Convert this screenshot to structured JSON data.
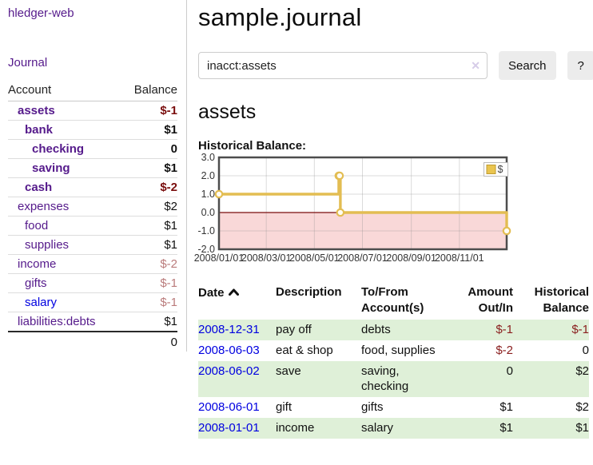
{
  "app": {
    "title": "hledger-web",
    "nav_journal": "Journal"
  },
  "sidebar": {
    "columns": {
      "account": "Account",
      "balance": "Balance"
    },
    "accounts": [
      {
        "name": "assets",
        "depth": 1,
        "bold": true,
        "balance": "$-1"
      },
      {
        "name": "bank",
        "depth": 2,
        "bold": true,
        "balance": "$1"
      },
      {
        "name": "checking",
        "depth": 3,
        "bold": true,
        "balance": "0"
      },
      {
        "name": "saving",
        "depth": 3,
        "bold": true,
        "balance": "$1"
      },
      {
        "name": "cash",
        "depth": 2,
        "bold": true,
        "balance": "$-2"
      },
      {
        "name": "expenses",
        "depth": 1,
        "bold": false,
        "balance": "$2"
      },
      {
        "name": "food",
        "depth": 2,
        "bold": false,
        "balance": "$1"
      },
      {
        "name": "supplies",
        "depth": 2,
        "bold": false,
        "balance": "$1"
      },
      {
        "name": "income",
        "depth": 1,
        "bold": false,
        "balance": "$-2"
      },
      {
        "name": "gifts",
        "depth": 2,
        "bold": false,
        "balance": "$-1"
      },
      {
        "name": "salary",
        "depth": 2,
        "bold": false,
        "balance": "$-1",
        "link_style": "blue"
      },
      {
        "name": "liabilities:debts",
        "depth": 1,
        "bold": false,
        "balance": "$1"
      }
    ],
    "total": "0"
  },
  "header": {
    "title": "sample.journal"
  },
  "search": {
    "value": "inacct:assets",
    "clear_icon": "✕",
    "button": "Search",
    "help_button": "?"
  },
  "account_page": {
    "heading": "assets",
    "chart_label": "Historical Balance:"
  },
  "chart_data": {
    "type": "line",
    "title": "Historical Balance:",
    "legend": [
      {
        "label": "$",
        "color": "#eac54f"
      }
    ],
    "legend_position": "top-right",
    "grid": true,
    "x_range": [
      "2008-01-01",
      "2008-12-31"
    ],
    "y_range": [
      -2.0,
      3.0
    ],
    "y_ticks": [
      "3.0",
      "2.0",
      "1.0",
      "0.0",
      "-1.0",
      "-2.0"
    ],
    "x_ticks": [
      {
        "label": "2008/01/01",
        "date": "2008-01-01"
      },
      {
        "label": "2008/03/01",
        "date": "2008-03-01"
      },
      {
        "label": "2008/05/01",
        "date": "2008-05-01"
      },
      {
        "label": "2008/07/01",
        "date": "2008-07-01"
      },
      {
        "label": "2008/09/01",
        "date": "2008-09-01"
      },
      {
        "label": "2008/11/01",
        "date": "2008-11-01"
      }
    ],
    "series": [
      {
        "name": "$",
        "style": "step-after",
        "color": "#e3bd52",
        "points": [
          {
            "x": "2008-01-01",
            "y": 1
          },
          {
            "x": "2008-06-01",
            "y": 2
          },
          {
            "x": "2008-06-02",
            "y": 2
          },
          {
            "x": "2008-06-03",
            "y": 0
          },
          {
            "x": "2008-12-31",
            "y": -1
          }
        ]
      }
    ],
    "negative_region_color": "#f9d8d8",
    "zero_line_color": "#7a0c0c"
  },
  "register": {
    "columns": [
      "Date",
      "Description",
      "To/From\nAccount(s)",
      "Amount\nOut/In",
      "Historical\nBalance"
    ],
    "sort": {
      "column": "Date",
      "direction": "ascending"
    },
    "rows": [
      {
        "date": "2008-12-31",
        "description": "pay off",
        "tofrom": "debts",
        "amount": "$-1",
        "balance": "$-1"
      },
      {
        "date": "2008-06-03",
        "description": "eat & shop",
        "tofrom": "food, supplies",
        "amount": "$-2",
        "balance": "0"
      },
      {
        "date": "2008-06-02",
        "description": "save",
        "tofrom": "saving, checking",
        "amount": "0",
        "balance": "$2"
      },
      {
        "date": "2008-06-01",
        "description": "gift",
        "tofrom": "gifts",
        "amount": "$1",
        "balance": "$2"
      },
      {
        "date": "2008-01-01",
        "description": "income",
        "tofrom": "salary",
        "amount": "$1",
        "balance": "$1"
      }
    ]
  }
}
